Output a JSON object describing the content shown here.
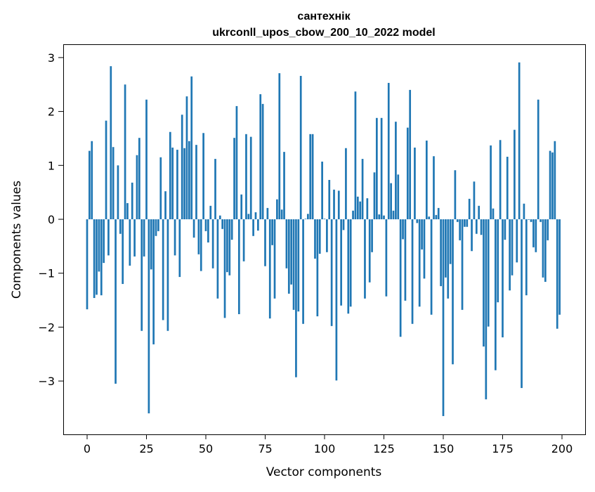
{
  "chart_data": {
    "type": "bar",
    "title": "сантехнік",
    "subtitle": "ukrconll_upos_cbow_200_10_2022 model",
    "xlabel": "Vector components",
    "ylabel": "Components values",
    "xlim": [
      -10,
      210
    ],
    "ylim": [
      -4.0,
      3.25
    ],
    "xticks": [
      "0",
      "25",
      "50",
      "75",
      "100",
      "125",
      "150",
      "175",
      "200"
    ],
    "xtick_values": [
      0,
      25,
      50,
      75,
      100,
      125,
      150,
      175,
      200
    ],
    "yticks": [
      "−3",
      "−2",
      "−1",
      "0",
      "1",
      "2",
      "3"
    ],
    "ytick_values": [
      -3,
      -2,
      -1,
      0,
      1,
      2,
      3
    ],
    "grid": false,
    "bar_color": "#1f77b4",
    "values": [
      -1.67,
      1.27,
      1.45,
      -1.46,
      -1.4,
      -0.97,
      -1.41,
      -0.81,
      1.83,
      -0.67,
      2.84,
      1.34,
      -3.05,
      1.0,
      -0.27,
      -1.2,
      2.5,
      0.3,
      -0.86,
      0.68,
      -0.69,
      1.19,
      1.51,
      -2.07,
      -0.69,
      2.22,
      -3.6,
      -0.93,
      -2.32,
      -0.31,
      -0.22,
      1.15,
      -1.87,
      0.52,
      -2.07,
      1.62,
      1.33,
      -0.67,
      1.29,
      -1.07,
      1.94,
      1.32,
      2.28,
      1.45,
      2.65,
      -0.34,
      1.38,
      -0.65,
      -0.96,
      1.6,
      -0.22,
      -0.43,
      0.25,
      -0.91,
      1.12,
      -1.47,
      0.07,
      -0.18,
      -1.83,
      -0.98,
      -1.04,
      -0.38,
      1.51,
      2.1,
      -1.76,
      0.46,
      -0.78,
      1.58,
      0.1,
      1.53,
      -0.31,
      0.13,
      -0.21,
      2.32,
      2.14,
      -0.87,
      0.21,
      -1.84,
      -0.48,
      -1.47,
      0.37,
      2.71,
      0.18,
      1.25,
      -0.91,
      -1.38,
      -1.21,
      -1.68,
      -2.93,
      -1.71,
      2.66,
      -1.94,
      0.01,
      0.1,
      1.58,
      1.58,
      -0.73,
      -1.8,
      -0.64,
      1.07,
      0.01,
      -0.61,
      0.73,
      -1.98,
      0.55,
      -2.99,
      0.53,
      -1.6,
      -0.2,
      1.32,
      -1.75,
      -1.62,
      0.16,
      2.37,
      0.42,
      0.33,
      1.12,
      -1.47,
      0.39,
      -1.17,
      -0.61,
      0.87,
      1.88,
      0.09,
      1.88,
      0.07,
      -1.43,
      2.53,
      0.67,
      0.16,
      1.81,
      0.83,
      -2.18,
      -0.37,
      -1.51,
      1.7,
      2.4,
      -1.94,
      1.33,
      -0.07,
      -1.62,
      -0.56,
      -1.1,
      1.46,
      0.05,
      -1.77,
      1.17,
      0.08,
      0.21,
      -1.24,
      -3.65,
      -1.08,
      -1.47,
      -0.83,
      -2.69,
      0.91,
      -0.05,
      -0.39,
      -1.68,
      -0.14,
      -0.14,
      0.38,
      -0.59,
      0.7,
      -0.27,
      0.25,
      -0.29,
      -2.36,
      -3.34,
      -1.99,
      1.37,
      0.2,
      -2.8,
      -1.54,
      1.47,
      -2.19,
      -0.38,
      1.16,
      -1.32,
      -1.04,
      1.66,
      -0.8,
      2.91,
      -3.13,
      0.29,
      -1.41,
      -0.01,
      -0.05,
      -0.52,
      -0.61,
      2.22,
      -0.05,
      -1.08,
      -1.16,
      -0.39,
      1.27,
      1.24,
      1.45,
      -2.03,
      -1.77
    ]
  }
}
